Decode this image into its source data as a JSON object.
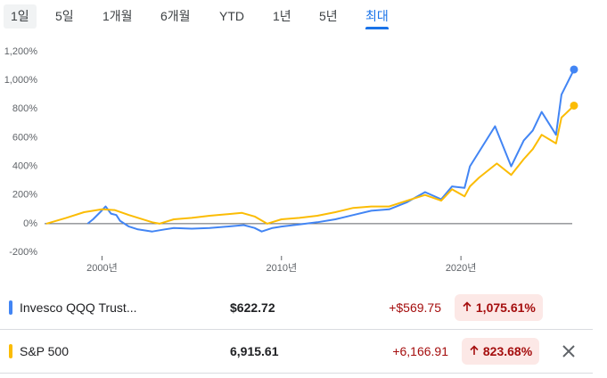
{
  "tabs": [
    "1일",
    "5일",
    "1개월",
    "6개월",
    "YTD",
    "1년",
    "5년",
    "최대"
  ],
  "chart_data": {
    "type": "line",
    "xlim": [
      1996.8,
      2026.5
    ],
    "xticks": [
      {
        "value": 2000,
        "label": "2000년"
      },
      {
        "value": 2010,
        "label": "2010년"
      },
      {
        "value": 2020,
        "label": "2020년"
      }
    ],
    "ylim": [
      -200,
      1200
    ],
    "yticks": [
      {
        "value": -200,
        "label": "-200%"
      },
      {
        "value": 0,
        "label": "0%"
      },
      {
        "value": 200,
        "label": "200%"
      },
      {
        "value": 400,
        "label": "400%"
      },
      {
        "value": 600,
        "label": "600%"
      },
      {
        "value": 800,
        "label": "800%"
      },
      {
        "value": 1000,
        "label": "1,000%"
      },
      {
        "value": 1200,
        "label": "1,200%"
      }
    ],
    "series": [
      {
        "name": "Invesco QQQ Trust...",
        "color": "#4285f4",
        "x": [
          1999.2,
          1999.5,
          1999.9,
          2000.2,
          2000.5,
          2000.8,
          2001,
          2001.5,
          2002,
          2002.8,
          2003.5,
          2004,
          2005,
          2006,
          2007,
          2007.9,
          2008.5,
          2008.9,
          2009.5,
          2010,
          2011,
          2012,
          2013,
          2014,
          2015,
          2016,
          2017,
          2018,
          2018.9,
          2019.5,
          2020.2,
          2020.5,
          2021,
          2021.9,
          2022.8,
          2023.5,
          2024,
          2024.5,
          2025.3,
          2025.6,
          2026.3
        ],
        "values": [
          0,
          30,
          80,
          120,
          70,
          60,
          20,
          -20,
          -40,
          -55,
          -40,
          -30,
          -35,
          -30,
          -20,
          -10,
          -30,
          -55,
          -30,
          -20,
          -5,
          10,
          30,
          60,
          90,
          100,
          150,
          220,
          170,
          260,
          250,
          400,
          500,
          680,
          400,
          580,
          650,
          780,
          620,
          900,
          1075.61
        ]
      },
      {
        "name": "S&P 500",
        "color": "#fbbc04",
        "x": [
          1996.9,
          1998,
          1999,
          2000,
          2000.7,
          2001.5,
          2002.8,
          2003.2,
          2004,
          2005,
          2006,
          2007.8,
          2008.5,
          2009.2,
          2010,
          2011,
          2012,
          2013,
          2014,
          2015,
          2016,
          2017,
          2018,
          2018.9,
          2019.5,
          2020.2,
          2020.5,
          2021,
          2022,
          2022.8,
          2023.5,
          2024,
          2024.5,
          2025.3,
          2025.6,
          2026.3
        ],
        "values": [
          0,
          40,
          80,
          100,
          95,
          60,
          10,
          0,
          30,
          40,
          55,
          75,
          50,
          0,
          30,
          40,
          55,
          80,
          110,
          120,
          120,
          160,
          200,
          160,
          240,
          190,
          260,
          320,
          420,
          340,
          450,
          520,
          620,
          560,
          740,
          823.68
        ]
      }
    ]
  },
  "table": {
    "rows": [
      {
        "price": "$622.72",
        "change": "+$569.75",
        "percent": "1,075.61%"
      },
      {
        "price": "6,915.61",
        "change": "+6,166.91",
        "percent": "823.68%"
      }
    ]
  }
}
